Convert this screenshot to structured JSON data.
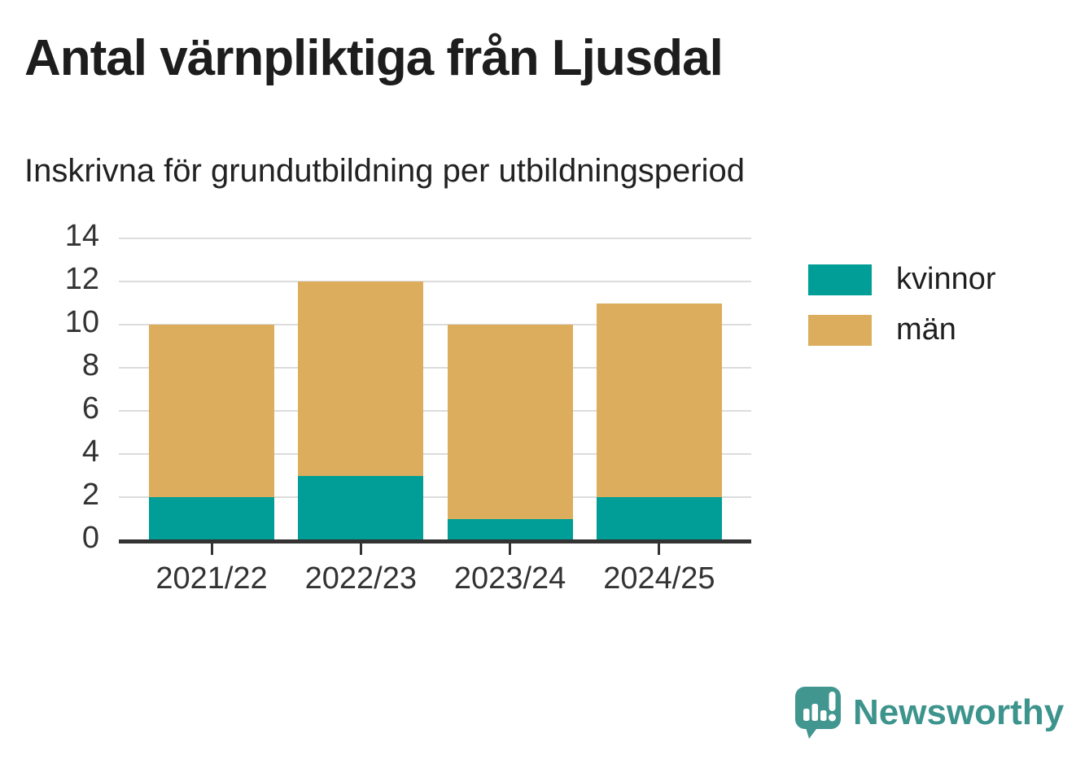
{
  "title": "Antal värnpliktiga från Ljusdal",
  "subtitle": "Inskrivna för grundutbildning per utbildningsperiod",
  "chart_data": {
    "type": "bar",
    "stacked": true,
    "title": "Antal värnpliktiga från Ljusdal",
    "subtitle": "Inskrivna för grundutbildning per utbildningsperiod",
    "categories": [
      "2021/22",
      "2022/23",
      "2023/24",
      "2024/25"
    ],
    "series": [
      {
        "name": "kvinnor",
        "color": "#009E96",
        "values": [
          2,
          3,
          1,
          2
        ]
      },
      {
        "name": "män",
        "color": "#DBAD5C",
        "values": [
          8,
          9,
          9,
          9
        ]
      }
    ],
    "stack_totals": [
      10,
      12,
      10,
      11
    ],
    "xlabel": "",
    "ylabel": "",
    "ylim": [
      0,
      14
    ],
    "yticks": [
      0,
      2,
      4,
      6,
      8,
      10,
      12,
      14
    ],
    "grid": true,
    "legend_position": "right"
  },
  "legend": {
    "items": [
      {
        "label": "kvinnor",
        "color": "#009E96"
      },
      {
        "label": "män",
        "color": "#DBAD5C"
      }
    ]
  },
  "colors": {
    "axis": "#333333",
    "grid": "#DCDCDC",
    "brand": "#3D948D"
  },
  "branding": {
    "logo_text": "Newsworthy",
    "logo_icon": "newsworthy-speech-bubble-chart-icon"
  }
}
